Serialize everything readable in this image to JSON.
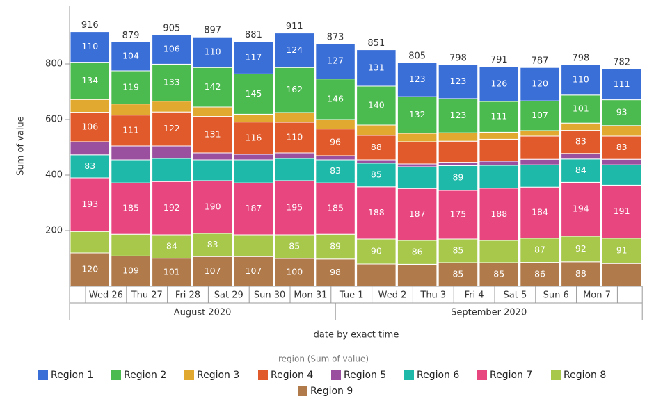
{
  "chart_data": {
    "type": "bar",
    "stacked": true,
    "y_label": "Sum of value",
    "x_label": "date by exact time",
    "legend_title": "region (Sum of value)",
    "legend": "bottom",
    "categories": [
      "Wed 26",
      "Thu 27",
      "Fri 28",
      "Sat 29",
      "Sun 30",
      "Mon 31",
      "Tue 1",
      "Wed 2",
      "Thu 3",
      "Fri 4",
      "Sat 5",
      "Sun 6",
      "Mon 7",
      null
    ],
    "groups": [
      "August 2020",
      "September 2020"
    ],
    "ylim": [
      0,
      1000
    ],
    "yticks": [
      200,
      400,
      600,
      800
    ],
    "totals": [
      916,
      879,
      905,
      897,
      881,
      911,
      873,
      851,
      805,
      798,
      791,
      787,
      798,
      782
    ],
    "series": [
      {
        "name": "Region 9",
        "color": "#b07a4a",
        "values": [
          120,
          109,
          101,
          107,
          107,
          100,
          98,
          80,
          79,
          85,
          85,
          86,
          88,
          82
        ],
        "value_labels": [
          "120",
          "109",
          "101",
          "107",
          "107",
          "100",
          "98",
          null,
          null,
          "85",
          "85",
          "86",
          "88",
          null
        ]
      },
      {
        "name": "Region 8",
        "color": "#a8c84b",
        "values": [
          77,
          78,
          84,
          83,
          78,
          85,
          89,
          90,
          86,
          85,
          80,
          87,
          92,
          91
        ],
        "value_labels": [
          null,
          null,
          "84",
          "83",
          null,
          "85",
          "89",
          "90",
          "86",
          "85",
          null,
          "87",
          "92",
          "91"
        ]
      },
      {
        "name": "Region 7",
        "color": "#e8467f",
        "values": [
          193,
          185,
          192,
          190,
          187,
          195,
          185,
          188,
          187,
          175,
          188,
          184,
          194,
          191
        ],
        "value_labels": [
          "193",
          "185",
          "192",
          "190",
          "187",
          "195",
          "185",
          "188",
          "187",
          "175",
          "188",
          "184",
          "194",
          "191"
        ]
      },
      {
        "name": "Region 6",
        "color": "#1fb9a9",
        "values": [
          83,
          83,
          83,
          75,
          83,
          80,
          83,
          85,
          78,
          89,
          82,
          80,
          84,
          73
        ],
        "value_labels": [
          "83",
          null,
          null,
          null,
          null,
          null,
          "83",
          "85",
          null,
          "89",
          null,
          null,
          "84",
          null
        ]
      },
      {
        "name": "Region 5",
        "color": "#9b4f9f",
        "values": [
          47,
          50,
          45,
          25,
          20,
          20,
          15,
          12,
          10,
          12,
          15,
          20,
          20,
          20
        ],
        "value_labels": [
          null,
          null,
          null,
          null,
          null,
          null,
          null,
          null,
          null,
          null,
          null,
          null,
          null,
          null
        ]
      },
      {
        "name": "Region 4",
        "color": "#e05a2c",
        "values": [
          106,
          111,
          122,
          131,
          116,
          110,
          96,
          88,
          80,
          76,
          79,
          83,
          83,
          83
        ],
        "value_labels": [
          "106",
          "111",
          "122",
          "131",
          "116",
          "110",
          "96",
          "88",
          null,
          null,
          null,
          null,
          "83",
          "83"
        ]
      },
      {
        "name": "Region 3",
        "color": "#e1a92f",
        "values": [
          46,
          40,
          39,
          34,
          28,
          35,
          34,
          37,
          30,
          30,
          25,
          20,
          26,
          38
        ],
        "value_labels": [
          null,
          null,
          null,
          null,
          null,
          null,
          null,
          null,
          null,
          null,
          null,
          null,
          null,
          null
        ]
      },
      {
        "name": "Region 2",
        "color": "#4cbb4f",
        "values": [
          134,
          119,
          133,
          142,
          145,
          162,
          146,
          140,
          132,
          123,
          111,
          107,
          101,
          93
        ],
        "value_labels": [
          "134",
          "119",
          "133",
          "142",
          "145",
          "162",
          "146",
          "140",
          "132",
          "123",
          "111",
          "107",
          "101",
          "93"
        ]
      },
      {
        "name": "Region 1",
        "color": "#3b6fd8",
        "values": [
          110,
          104,
          106,
          110,
          117,
          124,
          127,
          131,
          123,
          123,
          126,
          120,
          110,
          111
        ],
        "value_labels": [
          "110",
          "104",
          "106",
          "110",
          "117",
          "124",
          "127",
          "131",
          "123",
          "123",
          "126",
          "120",
          "110",
          "111"
        ]
      }
    ],
    "legend_order": [
      8,
      7,
      6,
      5,
      4,
      3,
      2,
      1,
      0
    ]
  }
}
